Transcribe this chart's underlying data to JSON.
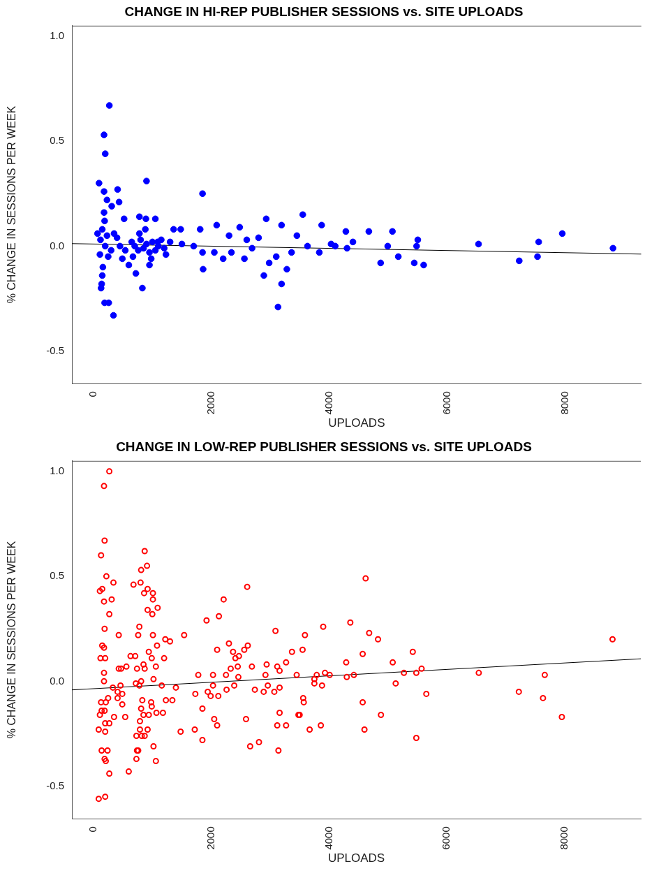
{
  "chart_data": [
    {
      "type": "scatter",
      "title": "CHANGE IN HI-REP PUBLISHER SESSIONS vs. SITE UPLOADS",
      "xlabel": "UPLOADS",
      "ylabel": "% CHANGE IN SESSIONS PER WEEK",
      "xlim": [
        -365,
        9290
      ],
      "ylim": [
        -0.655,
        1.05
      ],
      "xticks": [
        0,
        2000,
        4000,
        6000,
        8000
      ],
      "yticks": [
        {
          "value": -0.5,
          "label": "-0.5"
        },
        {
          "value": 0,
          "label": "0.0"
        },
        {
          "value": 0.5,
          "label": "0.5"
        },
        {
          "value": 1,
          "label": "1.0"
        }
      ],
      "grid": false,
      "legend": false,
      "marker": "circle",
      "series": [
        {
          "color": "#0000ff",
          "x": [
            270,
            180,
            200,
            95,
            900,
            180,
            410,
            1850,
            230,
            435,
            310,
            180,
            520,
            190,
            150,
            120,
            230,
            780,
            890,
            1050,
            1360,
            1480,
            1810,
            2090,
            2480,
            2930,
            3190,
            3550,
            3870,
            4280,
            4670,
            5070,
            70,
            200,
            110,
            160,
            150,
            140,
            130,
            190,
            260,
            340,
            490,
            600,
            720,
            830,
            950,
            670,
            540,
            1230,
            1090,
            1500,
            1850,
            1860,
            2050,
            2200,
            2340,
            2560,
            2690,
            2890,
            2980,
            3100,
            3130,
            3190,
            3280,
            3360,
            3630,
            3830,
            4030,
            4300,
            4870,
            5170,
            5440,
            5600,
            4990,
            5480,
            6530,
            7220,
            7530,
            7550,
            7950,
            8810,
            700,
            760,
            800,
            850,
            900,
            950,
            1000,
            1050,
            1100,
            1150,
            1200,
            780,
            880,
            980,
            650,
            1300,
            1700,
            2300,
            2600,
            2800,
            3450,
            4100,
            4400,
            5500,
            400,
            450,
            300,
            250,
            350
          ],
          "values": [
            0.67,
            0.53,
            0.44,
            0.3,
            0.31,
            0.26,
            0.27,
            0.25,
            0.22,
            0.21,
            0.19,
            0.16,
            0.13,
            0.12,
            0.08,
            0.03,
            0.05,
            0.14,
            0.13,
            0.13,
            0.08,
            0.08,
            0.08,
            0.1,
            0.09,
            0.13,
            0.1,
            0.15,
            0.1,
            0.07,
            0.07,
            0.07,
            0.06,
            0.0,
            -0.04,
            -0.1,
            -0.14,
            -0.18,
            -0.2,
            -0.27,
            -0.27,
            -0.33,
            -0.06,
            -0.09,
            -0.13,
            -0.2,
            -0.09,
            -0.05,
            -0.02,
            -0.04,
            0.02,
            0.01,
            -0.03,
            -0.11,
            -0.03,
            -0.06,
            -0.03,
            -0.06,
            -0.01,
            -0.14,
            -0.08,
            -0.05,
            -0.29,
            -0.18,
            -0.11,
            -0.03,
            0.0,
            -0.03,
            0.01,
            -0.01,
            -0.08,
            -0.05,
            -0.08,
            -0.09,
            0.0,
            0.0,
            0.01,
            -0.07,
            -0.05,
            0.02,
            0.06,
            -0.01,
            0.0,
            -0.02,
            0.03,
            -0.01,
            0.01,
            -0.03,
            0.02,
            -0.02,
            0.0,
            0.03,
            -0.01,
            0.06,
            0.08,
            -0.06,
            0.02,
            0.02,
            0.0,
            0.05,
            0.03,
            0.04,
            0.05,
            0.0,
            0.02,
            0.03,
            0.04,
            0.0,
            -0.02,
            -0.05,
            0.06
          ]
        },
        {
          "type": "line",
          "color": "#000000",
          "marker": "none",
          "x": [
            -365,
            9290
          ],
          "values": [
            0.012,
            -0.038
          ]
        }
      ]
    },
    {
      "type": "scatter",
      "title": "CHANGE IN LOW-REP PUBLISHER SESSIONS vs. SITE UPLOADS",
      "xlabel": "UPLOADS",
      "ylabel": "% CHANGE IN SESSIONS PER WEEK",
      "xlim": [
        -365,
        9290
      ],
      "ylim": [
        -0.655,
        1.05
      ],
      "xticks": [
        0,
        2000,
        4000,
        6000,
        8000
      ],
      "yticks": [
        {
          "value": -0.5,
          "label": "-0.5"
        },
        {
          "value": 0,
          "label": "0.0"
        },
        {
          "value": 0.5,
          "label": "0.5"
        },
        {
          "value": 1,
          "label": "1.0"
        }
      ],
      "grid": false,
      "legend": false,
      "marker": "circle",
      "series": [
        {
          "color": "#ff0000",
          "x": [
            270,
            180,
            190,
            130,
            870,
            910,
            810,
            680,
            800,
            920,
            860,
            1010,
            1010,
            340,
            220,
            110,
            150,
            180,
            310,
            270,
            920,
            1000,
            1090,
            190,
            430,
            780,
            760,
            1010,
            1540,
            1220,
            1300,
            1080,
            940,
            150,
            180,
            120,
            200,
            630,
            710,
            990,
            1200,
            1060,
            850,
            430,
            470,
            560,
            740,
            870,
            180,
            180,
            1020,
            810,
            720,
            780,
            330,
            460,
            1160,
            1400,
            410,
            490,
            410,
            250,
            130,
            210,
            490,
            830,
            980,
            810,
            990,
            1230,
            1340,
            140,
            190,
            110,
            350,
            270,
            200,
            540,
            850,
            940,
            1070,
            1180,
            790,
            90,
            200,
            790,
            920,
            730,
            820,
            870,
            1480,
            140,
            240,
            190,
            210,
            740,
            760,
            730,
            1020,
            1060,
            270,
            600,
            90,
            200,
            1780,
            2030,
            1920,
            2130,
            2210,
            2610,
            2300,
            2100,
            2370,
            2410,
            2470,
            2560,
            2620,
            2330,
            2450,
            2460,
            2690,
            2250,
            2030,
            2260,
            2390,
            1730,
            1940,
            1990,
            2120,
            1850,
            2050,
            2100,
            1720,
            1850,
            2590,
            2660,
            2810,
            3090,
            2940,
            2920,
            3120,
            3160,
            3270,
            3370,
            3450,
            2740,
            2890,
            2960,
            3070,
            3160,
            3160,
            3120,
            3270,
            3140,
            3480,
            4620,
            3900,
            4360,
            3590,
            3550,
            4680,
            4830,
            4570,
            4290,
            5080,
            5420,
            3790,
            3930,
            4010,
            3750,
            3750,
            3880,
            4300,
            4420,
            5270,
            5480,
            5570,
            5130,
            3560,
            3570,
            4570,
            5650,
            3500,
            4880,
            3670,
            3860,
            4600,
            5480,
            6540,
            7220,
            7660,
            7630,
            7950,
            8810
          ],
          "values": [
            1.0,
            0.93,
            0.67,
            0.6,
            0.62,
            0.55,
            0.53,
            0.46,
            0.47,
            0.44,
            0.42,
            0.42,
            0.39,
            0.47,
            0.5,
            0.43,
            0.44,
            0.38,
            0.39,
            0.32,
            0.34,
            0.32,
            0.35,
            0.25,
            0.22,
            0.26,
            0.22,
            0.22,
            0.22,
            0.2,
            0.19,
            0.17,
            0.14,
            0.17,
            0.16,
            0.11,
            0.11,
            0.12,
            0.12,
            0.11,
            0.11,
            0.07,
            0.08,
            0.06,
            0.06,
            0.07,
            0.06,
            0.06,
            0.04,
            0.0,
            0.01,
            0.0,
            -0.01,
            -0.02,
            -0.03,
            -0.02,
            -0.02,
            -0.03,
            -0.05,
            -0.06,
            -0.08,
            -0.08,
            -0.1,
            -0.1,
            -0.11,
            -0.09,
            -0.1,
            -0.13,
            -0.12,
            -0.09,
            -0.09,
            -0.14,
            -0.14,
            -0.16,
            -0.17,
            -0.2,
            -0.2,
            -0.17,
            -0.16,
            -0.16,
            -0.15,
            -0.15,
            -0.19,
            -0.23,
            -0.24,
            -0.23,
            -0.23,
            -0.26,
            -0.26,
            -0.26,
            -0.24,
            -0.33,
            -0.33,
            -0.37,
            -0.38,
            -0.33,
            -0.33,
            -0.37,
            -0.31,
            -0.38,
            -0.44,
            -0.43,
            -0.56,
            -0.55,
            0.03,
            0.03,
            0.29,
            0.31,
            0.39,
            0.45,
            0.18,
            0.15,
            0.14,
            0.11,
            0.12,
            0.15,
            0.17,
            0.06,
            0.07,
            0.02,
            0.07,
            0.03,
            -0.02,
            -0.04,
            -0.02,
            -0.06,
            -0.05,
            -0.07,
            -0.07,
            -0.13,
            -0.18,
            -0.21,
            -0.23,
            -0.28,
            -0.18,
            -0.31,
            -0.29,
            0.24,
            0.08,
            0.03,
            0.07,
            0.05,
            0.09,
            0.14,
            0.03,
            -0.04,
            -0.05,
            -0.02,
            -0.05,
            -0.03,
            -0.15,
            -0.21,
            -0.21,
            -0.33,
            -0.16,
            0.49,
            0.26,
            0.28,
            0.22,
            0.15,
            0.23,
            0.2,
            0.13,
            0.09,
            0.09,
            0.14,
            0.03,
            0.04,
            0.03,
            0.01,
            -0.01,
            -0.02,
            0.02,
            0.03,
            0.04,
            0.04,
            0.06,
            -0.01,
            -0.08,
            -0.1,
            -0.1,
            -0.06,
            -0.16,
            -0.16,
            -0.23,
            -0.21,
            -0.23,
            -0.27,
            0.04,
            -0.05,
            0.03,
            -0.08,
            -0.17,
            0.2
          ]
        },
        {
          "type": "line",
          "color": "#000000",
          "marker": "none",
          "x": [
            -365,
            9290
          ],
          "values": [
            -0.041,
            0.107
          ]
        }
      ]
    }
  ]
}
